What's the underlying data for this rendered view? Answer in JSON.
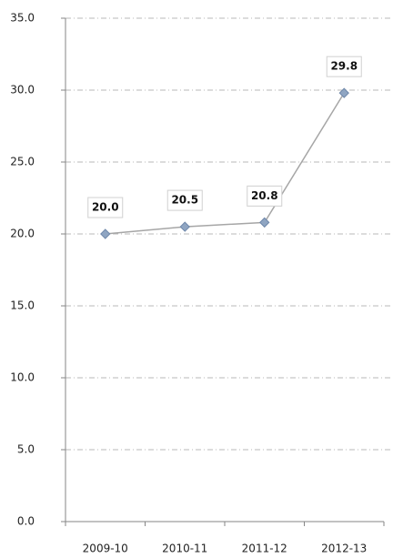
{
  "chart_data": {
    "type": "line",
    "categories": [
      "2009-10",
      "2010-11",
      "2011-12",
      "2012-13"
    ],
    "values": [
      20,
      20.5,
      20.8,
      29.8
    ],
    "value_labels": [
      "20.0",
      "20.5",
      "20.8",
      "29.8"
    ],
    "color": "#a6a6a6",
    "marker_color": "#8fa5c2",
    "ylim": [
      0,
      35
    ],
    "yticks": [
      {
        "value": 0,
        "label": "0.0"
      },
      {
        "value": 5,
        "label": "5.0"
      },
      {
        "value": 10,
        "label": "10.0"
      },
      {
        "value": 15,
        "label": "15.0"
      },
      {
        "value": 20,
        "label": "20.0"
      },
      {
        "value": 25,
        "label": "25.0"
      },
      {
        "value": 30,
        "label": "30.0"
      },
      {
        "value": 35,
        "label": "35.0"
      }
    ],
    "grid": true
  }
}
